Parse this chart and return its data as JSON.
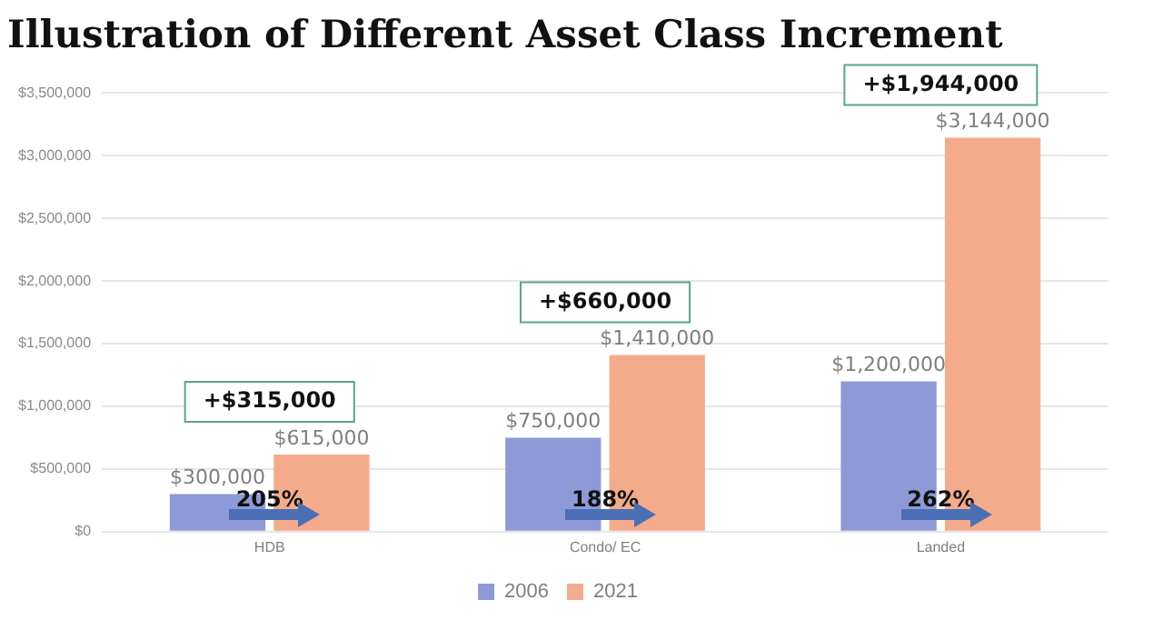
{
  "chart_data": {
    "type": "bar",
    "title": "Illustration of Different Asset Class Increment",
    "categories": [
      "HDB",
      "Condo/ EC",
      "Landed"
    ],
    "series": [
      {
        "name": "2006",
        "color": "#8e9ad8",
        "values": [
          300000,
          750000,
          1200000
        ],
        "value_labels": [
          "$300,000",
          "$750,000",
          "$1,200,000"
        ]
      },
      {
        "name": "2021",
        "color": "#f4ab8c",
        "values": [
          615000,
          1410000,
          3144000
        ],
        "value_labels": [
          "$615,000",
          "$1,410,000",
          "$3,144,000"
        ]
      }
    ],
    "ylim": [
      0,
      3500000
    ],
    "yticks": [
      {
        "value": 0,
        "label": "$0"
      },
      {
        "value": 500000,
        "label": "$500,000"
      },
      {
        "value": 1000000,
        "label": "$1,000,000"
      },
      {
        "value": 1500000,
        "label": "$1,500,000"
      },
      {
        "value": 2000000,
        "label": "$2,000,000"
      },
      {
        "value": 2500000,
        "label": "$2,500,000"
      },
      {
        "value": 3000000,
        "label": "$3,000,000"
      },
      {
        "value": 3500000,
        "label": "$3,500,000"
      }
    ],
    "grid": "y",
    "legend": "bottom",
    "annotations": [
      "+$315,000",
      "+$660,000",
      "+$1,944,000",
      "205%",
      "188%",
      "262%"
    ]
  }
}
